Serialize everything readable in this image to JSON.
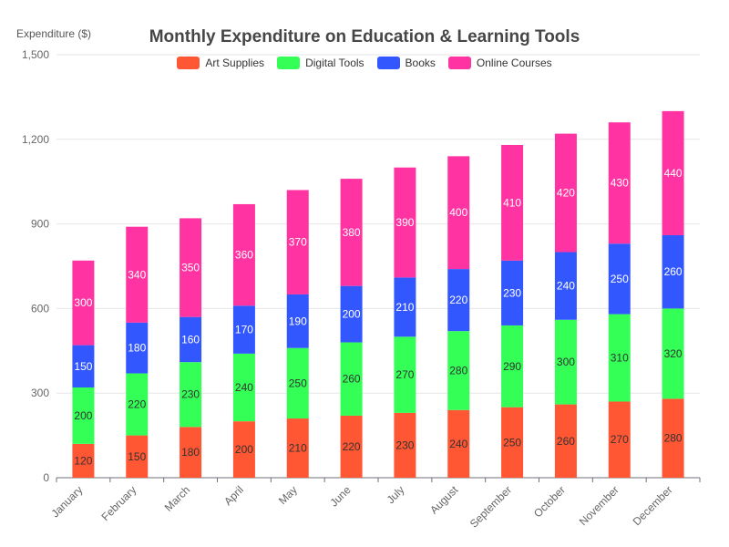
{
  "chart_data": {
    "type": "bar",
    "stacked": true,
    "title": "Monthly Expenditure on Education & Learning Tools",
    "ylabel": "Expenditure ($)",
    "xlabel": "",
    "ylim": [
      0,
      1500
    ],
    "yticks": [
      "0",
      "300",
      "600",
      "900",
      "1,200",
      "1,500"
    ],
    "ytick_values": [
      0,
      300,
      600,
      900,
      1200,
      1500
    ],
    "grid": true,
    "legend_position": "top-center",
    "categories": [
      "January",
      "February",
      "March",
      "April",
      "May",
      "June",
      "July",
      "August",
      "September",
      "October",
      "November",
      "December"
    ],
    "series": [
      {
        "name": "Art Supplies",
        "color": "#ff5733",
        "label_color": "#333333",
        "values": [
          120,
          150,
          180,
          200,
          210,
          220,
          230,
          240,
          250,
          260,
          270,
          280
        ]
      },
      {
        "name": "Digital Tools",
        "color": "#33ff57",
        "label_color": "#333333",
        "values": [
          200,
          220,
          230,
          240,
          250,
          260,
          270,
          280,
          290,
          300,
          310,
          320
        ]
      },
      {
        "name": "Books",
        "color": "#3357ff",
        "label_color": "#ffffff",
        "values": [
          150,
          180,
          160,
          170,
          190,
          200,
          210,
          220,
          230,
          240,
          250,
          260
        ]
      },
      {
        "name": "Online Courses",
        "color": "#ff33a1",
        "label_color": "#ffffff",
        "values": [
          300,
          340,
          350,
          360,
          370,
          380,
          390,
          400,
          410,
          420,
          430,
          440
        ]
      }
    ]
  }
}
